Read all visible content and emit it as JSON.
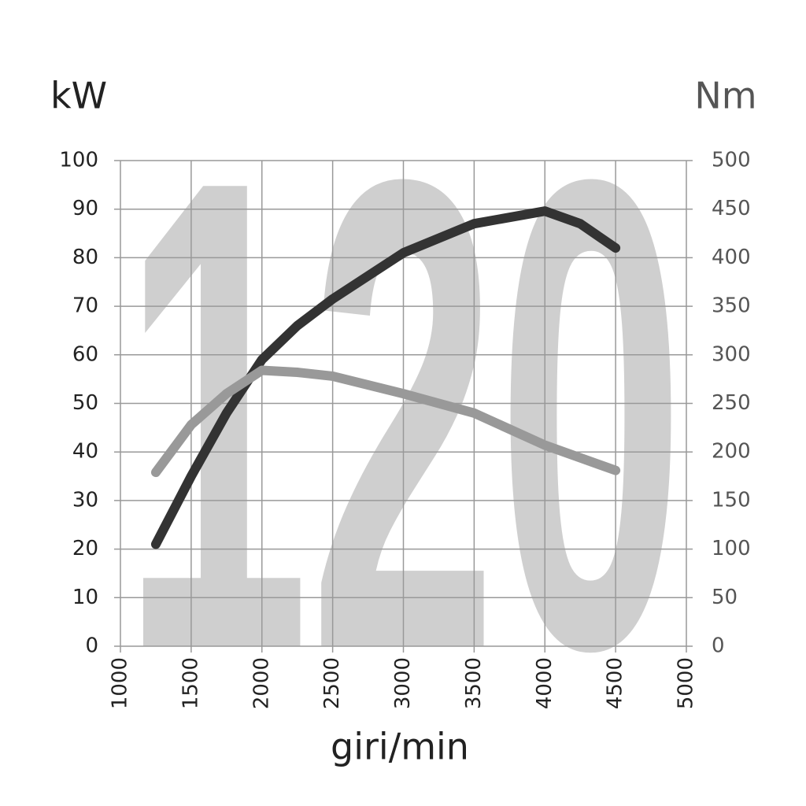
{
  "chart_data": {
    "type": "line",
    "watermark": "120",
    "ylabel": "kW",
    "y2label": "Nm",
    "xlabel": "giri/min",
    "x": [
      1250,
      1500,
      1750,
      2000,
      2250,
      2500,
      3000,
      3500,
      4000,
      4250,
      4500
    ],
    "series": [
      {
        "color": "#333333",
        "values": [
          21,
          35,
          48,
          59,
          66,
          71.5,
          81,
          87,
          89.6,
          87,
          82
        ]
      },
      {
        "color": "#999999",
        "axis": "y2",
        "values": [
          179,
          228,
          260,
          284,
          282,
          278,
          260,
          240,
          207,
          194,
          181
        ]
      }
    ],
    "xlim": [
      1000,
      5000
    ],
    "xticks": [
      1000,
      1500,
      2000,
      2500,
      3000,
      3500,
      4000,
      4500,
      5000
    ],
    "ylim": [
      0,
      100
    ],
    "yticks": [
      0,
      10,
      20,
      30,
      40,
      50,
      60,
      70,
      80,
      90,
      100
    ],
    "y2lim": [
      0,
      500
    ],
    "y2ticks": [
      0,
      50,
      100,
      150,
      200,
      250,
      300,
      350,
      400,
      450,
      500
    ],
    "grid": true
  }
}
